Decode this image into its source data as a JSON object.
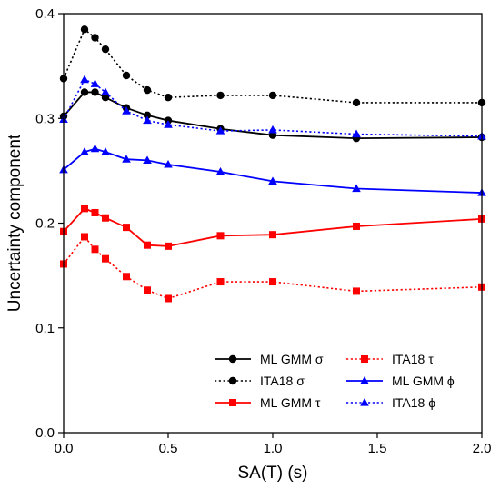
{
  "chart_data": {
    "type": "line",
    "xlabel": "SA(T) (s)",
    "ylabel": "Uncertainty component",
    "xlim": [
      0,
      2.0
    ],
    "ylim": [
      0,
      0.4
    ],
    "xticks": [
      0,
      0.5,
      1.0,
      1.5,
      2.0
    ],
    "xtick_labels": [
      "0.0",
      "0.5",
      "1.0",
      "1.5",
      "2.0"
    ],
    "yticks": [
      0,
      0.1,
      0.2,
      0.3,
      0.4
    ],
    "ytick_labels": [
      "0.0",
      "0.1",
      "0.2",
      "0.3",
      "0.4"
    ],
    "grid": false,
    "legend_position": "bottom-right",
    "x": [
      0,
      0.1,
      0.15,
      0.2,
      0.3,
      0.4,
      0.5,
      0.75,
      1.0,
      1.4,
      2.0
    ],
    "series": [
      {
        "name": "ML GMM σ",
        "color": "#000000",
        "dash": "solid",
        "marker": "circle",
        "values": [
          0.302,
          0.325,
          0.325,
          0.32,
          0.31,
          0.303,
          0.298,
          0.29,
          0.284,
          0.281,
          0.282
        ]
      },
      {
        "name": "ITA18 σ",
        "color": "#000000",
        "dash": "dotted",
        "marker": "circle",
        "values": [
          0.338,
          0.385,
          0.377,
          0.366,
          0.341,
          0.327,
          0.32,
          0.322,
          0.322,
          0.315,
          0.315
        ]
      },
      {
        "name": "ML GMM τ",
        "color": "#ff0000",
        "dash": "solid",
        "marker": "square",
        "values": [
          0.192,
          0.214,
          0.21,
          0.205,
          0.196,
          0.179,
          0.178,
          0.188,
          0.189,
          0.197,
          0.204
        ]
      },
      {
        "name": "ITA18 τ",
        "color": "#ff0000",
        "dash": "dotted",
        "marker": "square",
        "values": [
          0.161,
          0.187,
          0.175,
          0.166,
          0.149,
          0.136,
          0.128,
          0.144,
          0.144,
          0.135,
          0.139
        ]
      },
      {
        "name": "ML GMM ϕ",
        "color": "#0000ff",
        "dash": "solid",
        "marker": "triangle",
        "values": [
          0.251,
          0.268,
          0.271,
          0.268,
          0.261,
          0.26,
          0.256,
          0.249,
          0.24,
          0.233,
          0.229
        ]
      },
      {
        "name": "ITA18 ϕ",
        "color": "#0000ff",
        "dash": "dotted",
        "marker": "triangle",
        "values": [
          0.299,
          0.337,
          0.333,
          0.325,
          0.307,
          0.298,
          0.294,
          0.288,
          0.289,
          0.285,
          0.283
        ]
      }
    ]
  }
}
